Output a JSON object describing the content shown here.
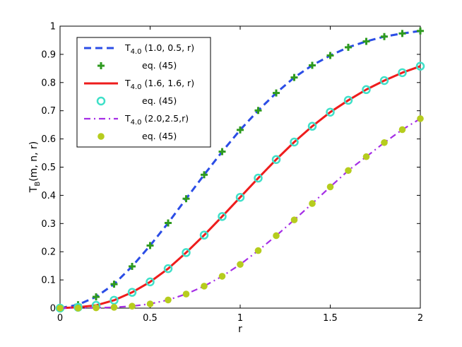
{
  "chart_data": {
    "type": "line",
    "xlabel": "r",
    "ylabel": {
      "main": "T",
      "sub": "B",
      "rest": "(m, n, r)"
    },
    "xlim": [
      0,
      2
    ],
    "ylim": [
      0,
      1
    ],
    "x_ticks": [
      {
        "value": 0,
        "label": "0"
      },
      {
        "value": 0.5,
        "label": "0.5"
      },
      {
        "value": 1,
        "label": "1"
      },
      {
        "value": 1.5,
        "label": "1.5"
      },
      {
        "value": 2,
        "label": "2"
      }
    ],
    "y_ticks": [
      {
        "value": 0,
        "label": "0"
      },
      {
        "value": 0.1,
        "label": "0.1"
      },
      {
        "value": 0.2,
        "label": "0.2"
      },
      {
        "value": 0.3,
        "label": "0.3"
      },
      {
        "value": 0.4,
        "label": "0.4"
      },
      {
        "value": 0.5,
        "label": "0.5"
      },
      {
        "value": 0.6,
        "label": "0.6"
      },
      {
        "value": 0.7,
        "label": "0.7"
      },
      {
        "value": 0.8,
        "label": "0.8"
      },
      {
        "value": 0.9,
        "label": "0.9"
      },
      {
        "value": 1,
        "label": "1"
      }
    ],
    "grid": false,
    "legend_position": "top-left",
    "series": [
      {
        "name": {
          "main": "T",
          "sub": "4.0",
          "rest": " (1.0, 0.5, r)"
        },
        "kind": "line",
        "style": "dashed",
        "color": "#2b4de6",
        "x": [
          0,
          0.1,
          0.2,
          0.3,
          0.4,
          0.5,
          0.6,
          0.7,
          0.8,
          0.9,
          1.0,
          1.1,
          1.2,
          1.3,
          1.4,
          1.5,
          1.6,
          1.7,
          1.8,
          1.9,
          2.0
        ],
        "y": [
          0,
          0.012,
          0.04,
          0.085,
          0.148,
          0.222,
          0.302,
          0.388,
          0.473,
          0.555,
          0.632,
          0.701,
          0.763,
          0.818,
          0.861,
          0.896,
          0.925,
          0.946,
          0.963,
          0.974,
          0.983
        ]
      },
      {
        "name": {
          "main": "",
          "sub": "",
          "rest": "eq. (45)"
        },
        "kind": "markers",
        "marker": "plus",
        "color": "#2e9a1f",
        "x": [
          0,
          0.1,
          0.2,
          0.3,
          0.4,
          0.5,
          0.6,
          0.7,
          0.8,
          0.9,
          1.0,
          1.1,
          1.2,
          1.3,
          1.4,
          1.5,
          1.6,
          1.7,
          1.8,
          1.9,
          2.0
        ],
        "y": [
          0,
          0.012,
          0.04,
          0.085,
          0.148,
          0.222,
          0.302,
          0.388,
          0.473,
          0.555,
          0.632,
          0.701,
          0.763,
          0.818,
          0.861,
          0.896,
          0.925,
          0.946,
          0.963,
          0.974,
          0.983
        ]
      },
      {
        "name": {
          "main": "T",
          "sub": "4.0",
          "rest": " (1.6, 1.6, r)"
        },
        "kind": "line",
        "style": "solid",
        "color": "#ee1c1c",
        "x": [
          0,
          0.1,
          0.2,
          0.3,
          0.4,
          0.5,
          0.6,
          0.7,
          0.8,
          0.9,
          1.0,
          1.1,
          1.2,
          1.3,
          1.4,
          1.5,
          1.6,
          1.7,
          1.8,
          1.9,
          2.0
        ],
        "y": [
          0,
          0.003,
          0.01,
          0.028,
          0.056,
          0.093,
          0.14,
          0.197,
          0.259,
          0.325,
          0.393,
          0.461,
          0.527,
          0.589,
          0.645,
          0.695,
          0.737,
          0.775,
          0.807,
          0.835,
          0.858
        ]
      },
      {
        "name": {
          "main": "",
          "sub": "",
          "rest": "eq. (45)"
        },
        "kind": "markers",
        "marker": "circle-open",
        "color": "#3fe0c8",
        "x": [
          0,
          0.1,
          0.2,
          0.3,
          0.4,
          0.5,
          0.6,
          0.7,
          0.8,
          0.9,
          1.0,
          1.1,
          1.2,
          1.3,
          1.4,
          1.5,
          1.6,
          1.7,
          1.8,
          1.9,
          2.0
        ],
        "y": [
          0,
          0.003,
          0.01,
          0.028,
          0.056,
          0.093,
          0.14,
          0.197,
          0.259,
          0.325,
          0.393,
          0.461,
          0.527,
          0.589,
          0.645,
          0.695,
          0.737,
          0.775,
          0.807,
          0.835,
          0.858
        ]
      },
      {
        "name": {
          "main": "T",
          "sub": "4.0",
          "rest": " (2.0,2.5,r)"
        },
        "kind": "line",
        "style": "dashdot",
        "color": "#a52ee6",
        "x": [
          0,
          0.1,
          0.2,
          0.3,
          0.4,
          0.5,
          0.6,
          0.7,
          0.8,
          0.9,
          1.0,
          1.1,
          1.2,
          1.3,
          1.4,
          1.5,
          1.6,
          1.7,
          1.8,
          1.9,
          2.0
        ],
        "y": [
          0,
          0.0002,
          0.001,
          0.003,
          0.007,
          0.015,
          0.029,
          0.05,
          0.078,
          0.113,
          0.155,
          0.204,
          0.257,
          0.313,
          0.371,
          0.43,
          0.488,
          0.537,
          0.587,
          0.633,
          0.672
        ]
      },
      {
        "name": {
          "main": "",
          "sub": "",
          "rest": "eq. (45)"
        },
        "kind": "markers",
        "marker": "dot",
        "color": "#b6cc1e",
        "x": [
          0,
          0.1,
          0.2,
          0.3,
          0.4,
          0.5,
          0.6,
          0.7,
          0.8,
          0.9,
          1.0,
          1.1,
          1.2,
          1.3,
          1.4,
          1.5,
          1.6,
          1.7,
          1.8,
          1.9,
          2.0
        ],
        "y": [
          0,
          0.0002,
          0.001,
          0.003,
          0.007,
          0.015,
          0.029,
          0.05,
          0.078,
          0.113,
          0.155,
          0.204,
          0.257,
          0.313,
          0.371,
          0.43,
          0.488,
          0.537,
          0.587,
          0.633,
          0.672
        ]
      }
    ]
  }
}
